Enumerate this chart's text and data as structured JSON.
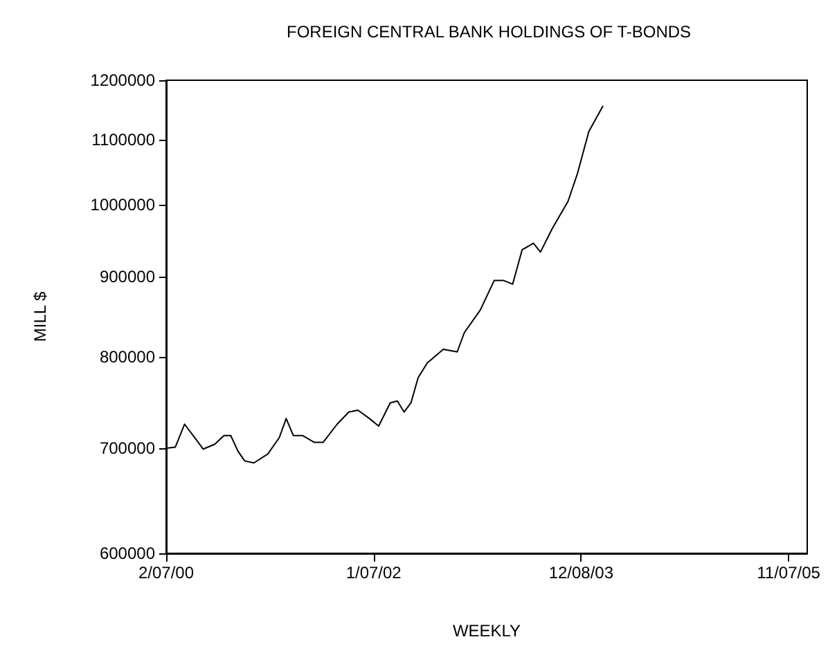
{
  "chart_data": {
    "type": "line",
    "title": "FOREIGN CENTRAL BANK HOLDINGS OF T-BONDS",
    "xlabel": "WEEKLY",
    "ylabel": "MILL $",
    "x": [
      "2000-02-07",
      "2000-03-09",
      "2000-04-09",
      "2000-05-18",
      "2000-06-11",
      "2000-07-20",
      "2000-08-20",
      "2000-09-12",
      "2000-10-06",
      "2000-10-29",
      "2000-11-29",
      "2001-01-15",
      "2001-02-23",
      "2001-03-18",
      "2001-04-11",
      "2001-05-12",
      "2001-06-20",
      "2001-07-21",
      "2001-09-06",
      "2001-10-15",
      "2001-11-15",
      "2001-12-24",
      "2002-01-24",
      "2002-03-04",
      "2002-03-28",
      "2002-04-20",
      "2002-05-13",
      "2002-06-06",
      "2002-07-07",
      "2002-08-30",
      "2002-10-16",
      "2002-11-09",
      "2003-01-02",
      "2003-02-18",
      "2003-03-21",
      "2003-04-21",
      "2003-05-23",
      "2003-06-30",
      "2003-07-24",
      "2003-09-01",
      "2003-10-25",
      "2003-11-26",
      "2004-01-03",
      "2004-02-19"
    ],
    "series": [
      {
        "color": "#000000",
        "values": [
          700000,
          701000,
          725000,
          709000,
          699000,
          704000,
          713000,
          713000,
          697000,
          687000,
          685000,
          694000,
          711000,
          731000,
          713000,
          713000,
          706000,
          706000,
          725000,
          738000,
          740000,
          731000,
          723000,
          748000,
          750000,
          738000,
          748000,
          776000,
          793000,
          809000,
          806000,
          829000,
          857000,
          895000,
          895000,
          890000,
          936000,
          945000,
          933000,
          965000,
          1005000,
          1047000,
          1113000,
          1155000
        ]
      }
    ],
    "xlim": [
      "2000-02-07",
      "2006-01-09"
    ],
    "xticks": [
      {
        "value": "2000-02-07",
        "label": "2/07/00"
      },
      {
        "value": "2002-01-07",
        "label": "1/07/02"
      },
      {
        "value": "2003-12-08",
        "label": "12/08/03"
      },
      {
        "value": "2005-11-07",
        "label": "11/07/05"
      }
    ],
    "ylim": [
      600000,
      1200000
    ],
    "yticks": [
      600000,
      700000,
      800000,
      900000,
      1000000,
      1100000,
      1200000
    ],
    "log": "y",
    "grid": false,
    "marker": "none",
    "line_style": "solid"
  }
}
